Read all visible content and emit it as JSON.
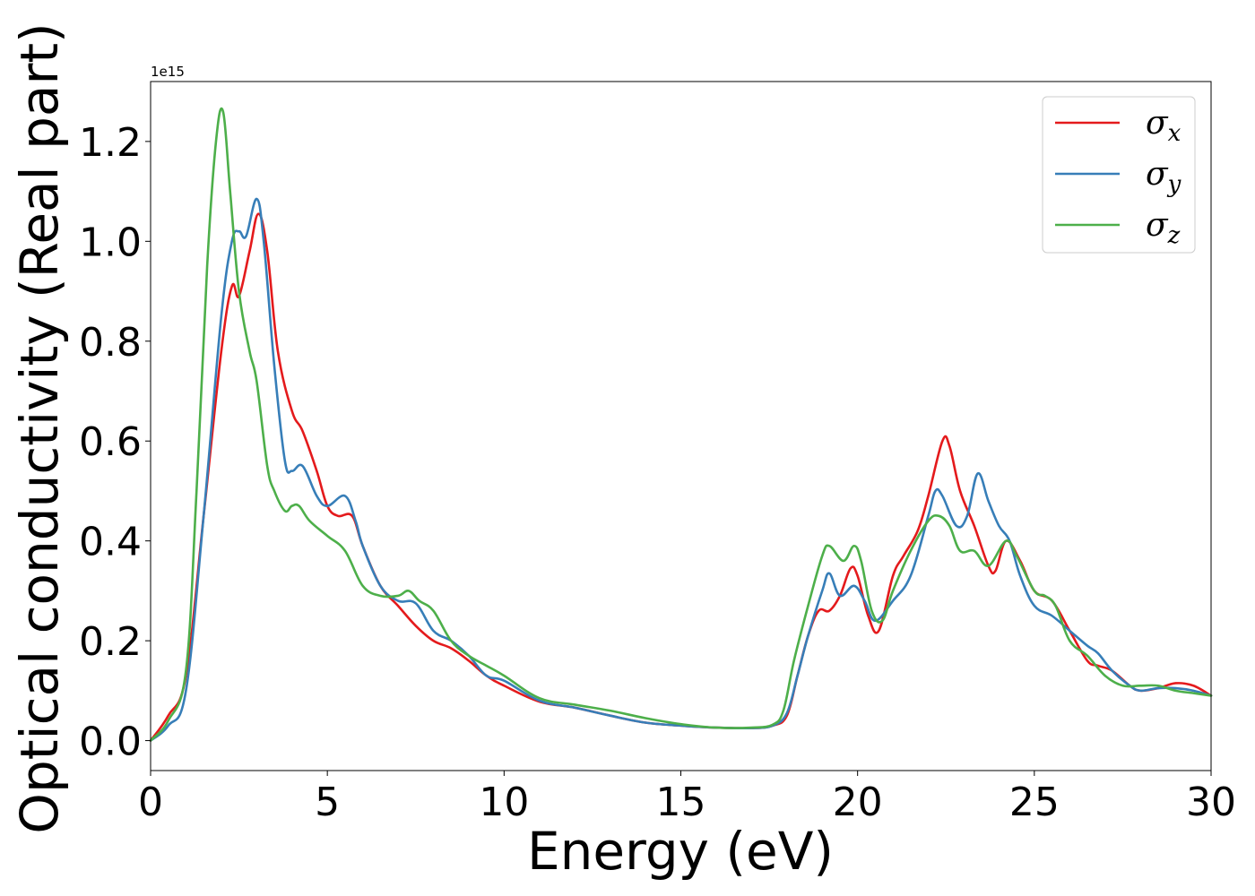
{
  "chart_data": {
    "type": "line",
    "xlabel": "Energy (eV)",
    "ylabel": "Optical conductivity (Real part)",
    "y_offset_text": "1e15",
    "xlim": [
      0,
      30
    ],
    "ylim": [
      -0.06,
      1.32
    ],
    "xticks": [
      0,
      5,
      10,
      15,
      20,
      25,
      30
    ],
    "xtick_labels": [
      "0",
      "5",
      "10",
      "15",
      "20",
      "25",
      "30"
    ],
    "yticks": [
      0.0,
      0.2,
      0.4,
      0.6,
      0.8,
      1.0,
      1.2
    ],
    "ytick_labels": [
      "0.0",
      "0.2",
      "0.4",
      "0.6",
      "0.8",
      "1.0",
      "1.2"
    ],
    "grid": false,
    "legend_position": "top-right",
    "series": [
      {
        "name": "σx",
        "symbol": "σ",
        "subscript": "x",
        "color": "#e41a1c",
        "x": [
          0,
          0.5,
          1.0,
          1.5,
          2.0,
          2.3,
          2.5,
          2.8,
          3.05,
          3.3,
          3.6,
          4.0,
          4.3,
          4.7,
          5.0,
          5.3,
          5.7,
          6.0,
          6.5,
          7.0,
          7.5,
          8.0,
          8.5,
          9.0,
          9.5,
          10.0,
          11.0,
          12.0,
          13.0,
          14.0,
          15.0,
          16.0,
          17.0,
          17.6,
          18.0,
          18.3,
          18.6,
          18.9,
          19.2,
          19.5,
          19.8,
          20.0,
          20.3,
          20.6,
          21.0,
          21.3,
          21.7,
          22.0,
          22.4,
          22.6,
          22.9,
          23.3,
          23.7,
          23.9,
          24.2,
          24.6,
          25.0,
          25.5,
          26.0,
          26.5,
          26.8,
          27.2,
          27.7,
          28.0,
          28.5,
          29.0,
          29.5,
          30.0
        ],
        "values": [
          0.0,
          0.05,
          0.13,
          0.45,
          0.78,
          0.91,
          0.89,
          0.98,
          1.055,
          0.98,
          0.78,
          0.66,
          0.62,
          0.54,
          0.47,
          0.45,
          0.45,
          0.39,
          0.31,
          0.27,
          0.23,
          0.2,
          0.185,
          0.16,
          0.13,
          0.11,
          0.078,
          0.066,
          0.05,
          0.036,
          0.03,
          0.026,
          0.025,
          0.03,
          0.05,
          0.13,
          0.21,
          0.26,
          0.26,
          0.29,
          0.345,
          0.33,
          0.25,
          0.22,
          0.33,
          0.37,
          0.42,
          0.49,
          0.6,
          0.59,
          0.5,
          0.43,
          0.35,
          0.34,
          0.4,
          0.36,
          0.3,
          0.28,
          0.22,
          0.16,
          0.15,
          0.14,
          0.11,
          0.1,
          0.105,
          0.115,
          0.11,
          0.09
        ]
      },
      {
        "name": "σy",
        "symbol": "σ",
        "subscript": "y",
        "color": "#377eb8",
        "x": [
          0,
          0.5,
          1.0,
          1.5,
          2.0,
          2.3,
          2.5,
          2.7,
          3.0,
          3.2,
          3.5,
          3.8,
          4.0,
          4.3,
          4.7,
          5.0,
          5.5,
          5.8,
          6.0,
          6.5,
          7.0,
          7.5,
          8.0,
          8.5,
          9.0,
          9.5,
          10.0,
          11.0,
          12.0,
          13.0,
          14.0,
          15.0,
          16.0,
          17.0,
          17.6,
          18.0,
          18.3,
          18.6,
          19.0,
          19.2,
          19.5,
          19.9,
          20.2,
          20.5,
          21.0,
          21.5,
          22.0,
          22.2,
          22.4,
          22.8,
          23.1,
          23.4,
          23.7,
          24.0,
          24.3,
          24.6,
          25.0,
          25.5,
          26.0,
          26.5,
          26.8,
          27.2,
          27.7,
          28.0,
          28.5,
          29.0,
          29.5,
          30.0
        ],
        "values": [
          0.0,
          0.03,
          0.1,
          0.45,
          0.85,
          1.0,
          1.02,
          1.01,
          1.085,
          1.0,
          0.75,
          0.56,
          0.54,
          0.55,
          0.49,
          0.47,
          0.49,
          0.44,
          0.39,
          0.31,
          0.28,
          0.275,
          0.22,
          0.2,
          0.17,
          0.13,
          0.12,
          0.08,
          0.066,
          0.05,
          0.036,
          0.03,
          0.026,
          0.025,
          0.03,
          0.055,
          0.13,
          0.21,
          0.3,
          0.335,
          0.29,
          0.31,
          0.28,
          0.24,
          0.28,
          0.33,
          0.45,
          0.5,
          0.49,
          0.43,
          0.45,
          0.535,
          0.48,
          0.43,
          0.4,
          0.33,
          0.27,
          0.25,
          0.22,
          0.19,
          0.175,
          0.14,
          0.11,
          0.1,
          0.105,
          0.105,
          0.1,
          0.09
        ]
      },
      {
        "name": "σz",
        "symbol": "σ",
        "subscript": "z",
        "color": "#4daf4a",
        "x": [
          0,
          0.5,
          1.0,
          1.3,
          1.6,
          1.85,
          2.05,
          2.25,
          2.5,
          2.8,
          3.0,
          3.3,
          3.5,
          3.8,
          4.0,
          4.2,
          4.5,
          5.0,
          5.5,
          6.0,
          6.5,
          7.0,
          7.3,
          7.6,
          8.0,
          8.5,
          9.0,
          9.5,
          10.0,
          11.0,
          12.0,
          13.0,
          14.0,
          15.0,
          16.0,
          17.0,
          17.6,
          17.9,
          18.2,
          18.6,
          19.0,
          19.2,
          19.6,
          19.9,
          20.1,
          20.4,
          20.7,
          21.0,
          21.5,
          22.0,
          22.3,
          22.6,
          22.9,
          23.3,
          23.7,
          24.2,
          24.5,
          25.0,
          25.3,
          25.6,
          26.0,
          26.5,
          27.0,
          27.5,
          28.0,
          28.5,
          29.0,
          29.5,
          30.0
        ],
        "values": [
          0.0,
          0.04,
          0.14,
          0.5,
          0.95,
          1.2,
          1.26,
          1.1,
          0.9,
          0.78,
          0.72,
          0.55,
          0.5,
          0.46,
          0.47,
          0.47,
          0.44,
          0.41,
          0.38,
          0.31,
          0.29,
          0.29,
          0.3,
          0.28,
          0.26,
          0.2,
          0.17,
          0.15,
          0.13,
          0.085,
          0.072,
          0.06,
          0.045,
          0.033,
          0.026,
          0.026,
          0.032,
          0.06,
          0.16,
          0.27,
          0.37,
          0.39,
          0.36,
          0.39,
          0.36,
          0.26,
          0.24,
          0.3,
          0.38,
          0.44,
          0.45,
          0.43,
          0.38,
          0.38,
          0.35,
          0.4,
          0.37,
          0.3,
          0.29,
          0.27,
          0.2,
          0.17,
          0.13,
          0.11,
          0.11,
          0.11,
          0.1,
          0.095,
          0.09
        ]
      }
    ]
  }
}
